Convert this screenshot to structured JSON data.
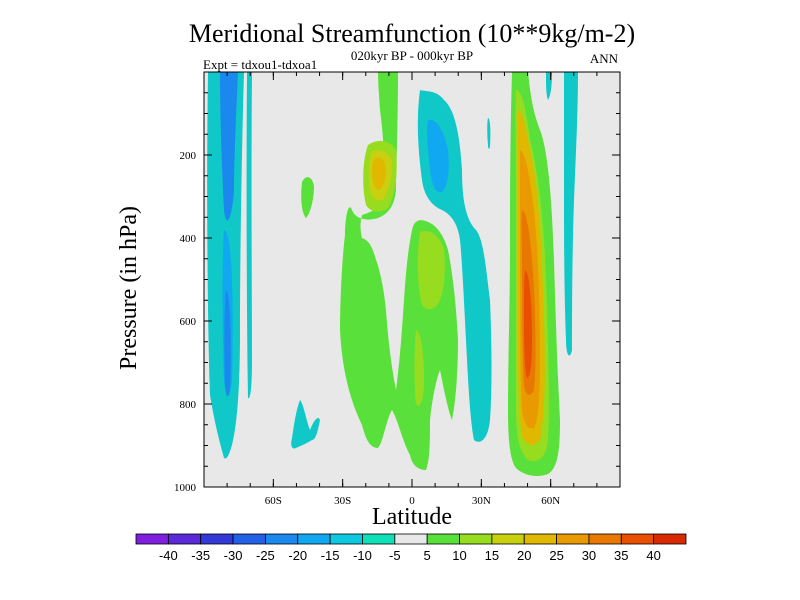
{
  "chart_data": {
    "type": "contour",
    "title": "Meridional Streamfunction (10**9kg/m-2)",
    "subtitle_center": "020kyr BP - 000kyr BP",
    "subtitle_left": "Expt = tdxou1-tdxoa1",
    "subtitle_right": "ANN",
    "xlabel": "Latitude",
    "ylabel": "Pressure (in hPa)",
    "xlim": [
      -90,
      90
    ],
    "ylim": [
      1000,
      0
    ],
    "x_ticks": [
      {
        "value": -60,
        "label": "60S"
      },
      {
        "value": -30,
        "label": "30S"
      },
      {
        "value": 0,
        "label": "0"
      },
      {
        "value": 30,
        "label": "30N"
      },
      {
        "value": 60,
        "label": "60N"
      }
    ],
    "y_ticks": [
      {
        "value": 200,
        "label": "200"
      },
      {
        "value": 400,
        "label": "400"
      },
      {
        "value": 600,
        "label": "600"
      },
      {
        "value": 800,
        "label": "800"
      },
      {
        "value": 1000,
        "label": "1000"
      }
    ],
    "colorbar": {
      "levels": [
        "-40",
        "-35",
        "-30",
        "-25",
        "-20",
        "-15",
        "-10",
        "-5",
        "5",
        "10",
        "15",
        "20",
        "25",
        "30",
        "35",
        "40"
      ],
      "colors": [
        "#7f1fe0",
        "#5b2ad8",
        "#3239d6",
        "#2360e6",
        "#1b88ee",
        "#10a8f0",
        "#0ec8e0",
        "#10e0b8",
        "#e8e8e8",
        "#5ae03a",
        "#98dc20",
        "#c8d010",
        "#e0b800",
        "#e89a00",
        "#e87800",
        "#e85000",
        "#d82a00"
      ]
    },
    "features": [
      {
        "name": "SH polar cell",
        "lat_range": [
          -85,
          -55
        ],
        "pressure_range": [
          0,
          920
        ],
        "value_class": "-10 to -15"
      },
      {
        "name": "Tropical positive (upper)",
        "lat_range": [
          -25,
          -5
        ],
        "pressure_range": [
          0,
          300
        ],
        "value_class": "5 to 20"
      },
      {
        "name": "Tropical negative",
        "lat_range": [
          5,
          25
        ],
        "pressure_range": [
          50,
          500
        ],
        "value_class": "-5 to -15"
      },
      {
        "name": "NH mid-latitude positive",
        "lat_range": [
          40,
          65
        ],
        "pressure_range": [
          0,
          950
        ],
        "value_class": "5 to 35"
      }
    ]
  }
}
